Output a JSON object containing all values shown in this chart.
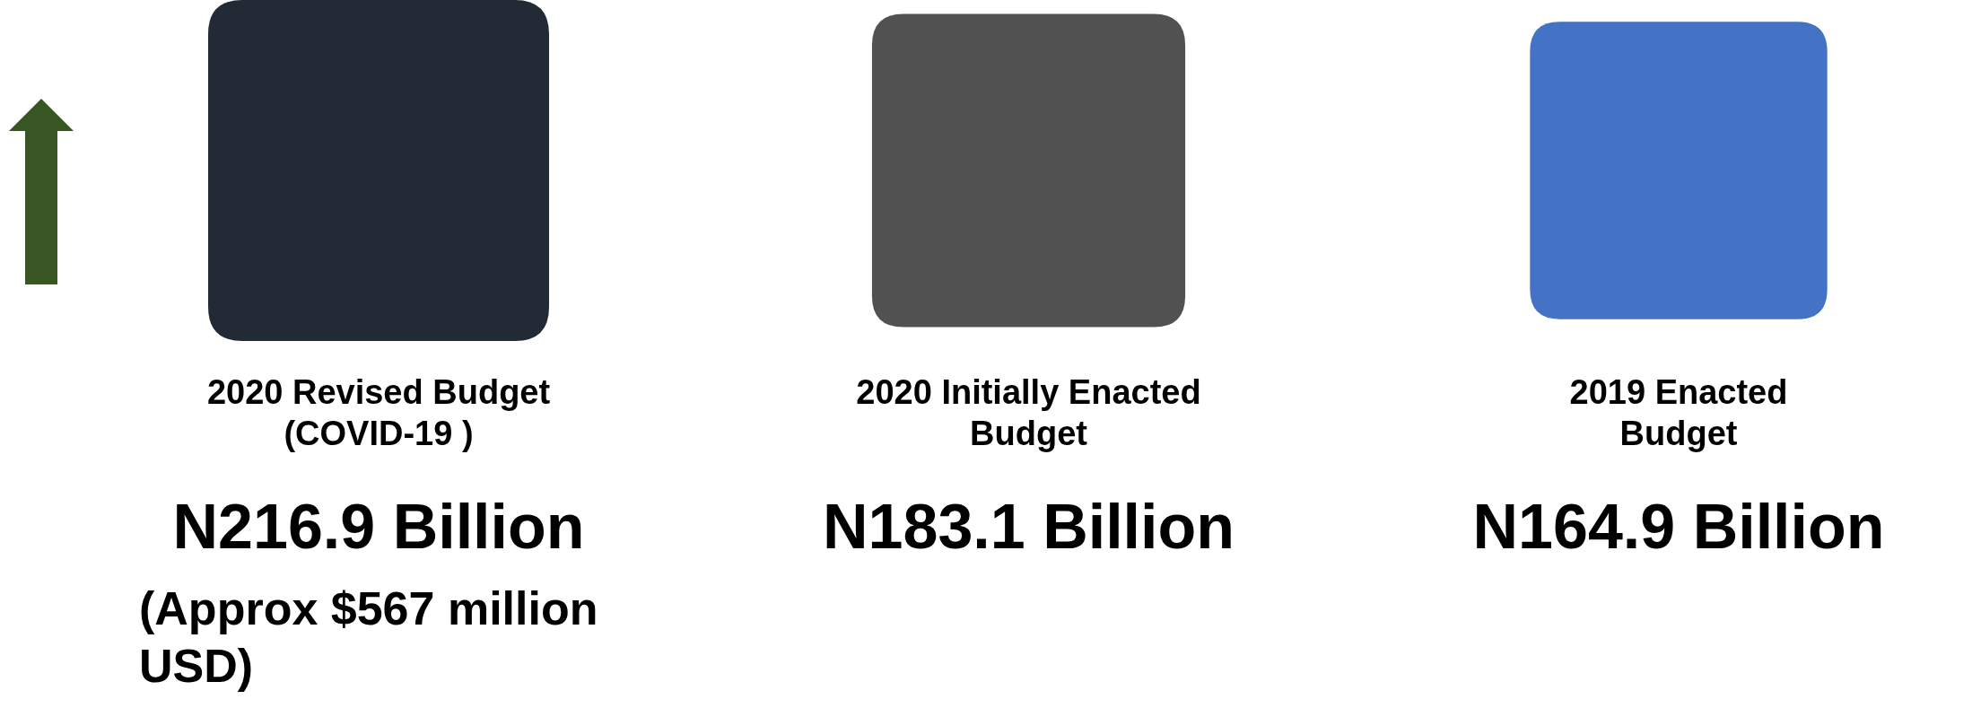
{
  "chart_data": {
    "type": "other",
    "categories": [
      "2020 Revised Budget\n(COVID-19 )",
      "2020 Initially Enacted\nBudget",
      "2019  Enacted\nBudget"
    ],
    "values": [
      216.9,
      183.1,
      164.9
    ],
    "value_labels": [
      "N216.9 Billion",
      "N183.1 Billion",
      "N164.9 Billion"
    ],
    "colors": [
      "#222a35",
      "#515151",
      "#4472c4"
    ],
    "annotations": [
      "(Approx $567 million\nUSD)"
    ]
  }
}
